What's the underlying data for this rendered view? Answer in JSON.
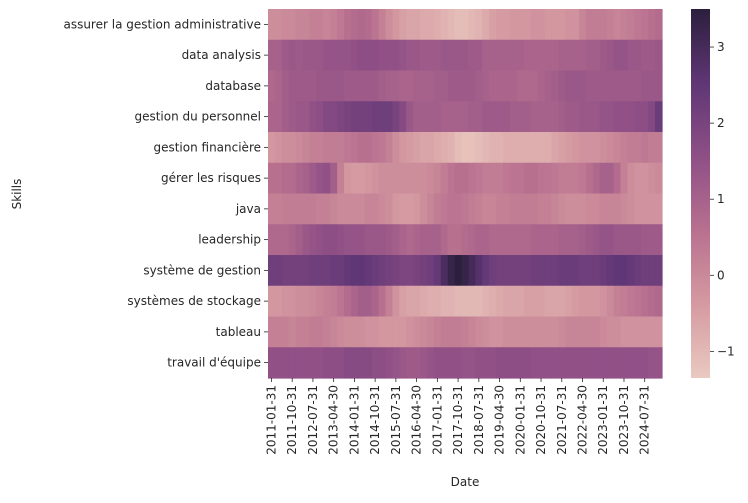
{
  "chart_data": {
    "type": "heatmap",
    "title": "",
    "xlabel": "Date",
    "ylabel": "Skills",
    "rows": [
      "assurer la gestion administrative",
      "data analysis",
      "database",
      "gestion du personnel",
      "gestion financière",
      "gérer les risques",
      "java",
      "leadership",
      "système de gestion",
      "systèmes de stockage",
      "tableau",
      "travail d'équipe"
    ],
    "x_tick_labels": [
      "2011-01-31",
      "2011-10-31",
      "2012-07-31",
      "2013-04-30",
      "2014-01-31",
      "2014-10-31",
      "2015-07-31",
      "2016-04-30",
      "2017-01-31",
      "2017-10-31",
      "2018-07-31",
      "2019-04-30",
      "2020-01-31",
      "2020-10-31",
      "2021-07-31",
      "2022-04-30",
      "2023-01-31",
      "2023-10-31",
      "2024-07-31"
    ],
    "n_columns": 57,
    "colorbar": {
      "min": -1.35,
      "max": 3.5,
      "ticks": [
        -1,
        0,
        1,
        2,
        3
      ]
    },
    "colormap_stops": [
      "#e9c9c0",
      "#d59aa1",
      "#b8708f",
      "#8e4f86",
      "#5f3675",
      "#2c1f3d"
    ],
    "values": [
      [
        -0.1,
        -0.1,
        0.0,
        0.0,
        0.1,
        0.1,
        0.2,
        0.2,
        0.1,
        0.2,
        0.4,
        0.6,
        0.7,
        0.8,
        0.7,
        0.5,
        0.2,
        -0.1,
        -0.3,
        -0.5,
        -0.6,
        -0.6,
        -0.7,
        -0.7,
        -0.8,
        -0.9,
        -1.0,
        -1.1,
        -1.1,
        -1.0,
        -0.9,
        -0.7,
        -0.5,
        -0.4,
        -0.4,
        -0.3,
        -0.3,
        -0.3,
        -0.2,
        -0.2,
        -0.3,
        -0.3,
        -0.3,
        -0.2,
        -0.2,
        0.1,
        0.3,
        0.3,
        0.3,
        0.2,
        0.1,
        0.2,
        0.3,
        0.4,
        0.5,
        0.6,
        0.7
      ],
      [
        1.0,
        1.0,
        1.2,
        1.3,
        1.2,
        1.3,
        1.3,
        1.3,
        1.4,
        1.4,
        1.4,
        1.4,
        1.5,
        1.6,
        1.6,
        1.6,
        1.5,
        1.5,
        1.5,
        1.4,
        1.3,
        1.3,
        1.2,
        1.2,
        1.2,
        1.3,
        1.3,
        1.3,
        1.3,
        1.2,
        1.2,
        1.0,
        1.0,
        1.0,
        1.0,
        1.0,
        1.0,
        0.9,
        0.9,
        0.9,
        0.9,
        0.9,
        1.0,
        1.0,
        1.0,
        1.0,
        1.1,
        1.1,
        1.2,
        1.3,
        1.4,
        1.4,
        1.3,
        1.3,
        1.2,
        1.2,
        1.3
      ],
      [
        0.8,
        0.9,
        1.1,
        1.2,
        1.2,
        1.2,
        1.2,
        1.3,
        1.3,
        1.3,
        1.3,
        1.2,
        1.2,
        1.2,
        1.2,
        1.2,
        1.1,
        1.0,
        1.0,
        0.9,
        0.9,
        1.0,
        1.0,
        1.0,
        1.1,
        1.1,
        1.2,
        1.2,
        1.2,
        1.2,
        1.1,
        1.0,
        0.9,
        0.9,
        0.9,
        0.9,
        0.8,
        0.8,
        0.8,
        0.9,
        1.0,
        1.1,
        1.2,
        1.3,
        1.3,
        1.3,
        1.2,
        1.2,
        1.2,
        1.2,
        1.2,
        1.2,
        1.2,
        1.2,
        1.3,
        1.3,
        1.3
      ],
      [
        0.9,
        0.9,
        1.1,
        1.2,
        1.3,
        1.3,
        1.5,
        1.6,
        1.8,
        1.8,
        1.9,
        2.0,
        2.1,
        2.1,
        2.1,
        2.2,
        2.2,
        2.2,
        2.0,
        1.7,
        1.3,
        1.1,
        1.1,
        1.1,
        1.1,
        1.0,
        1.0,
        1.0,
        1.0,
        1.1,
        1.1,
        1.2,
        1.2,
        1.2,
        1.2,
        1.1,
        1.1,
        1.1,
        1.0,
        1.0,
        1.0,
        1.0,
        1.1,
        1.2,
        1.2,
        1.3,
        1.3,
        1.3,
        1.4,
        1.4,
        1.5,
        1.5,
        1.5,
        1.6,
        1.6,
        1.8,
        2.3
      ],
      [
        -0.3,
        -0.2,
        -0.1,
        -0.1,
        0.0,
        0.1,
        0.2,
        0.2,
        0.3,
        0.3,
        0.3,
        0.4,
        0.5,
        0.6,
        0.6,
        0.5,
        0.4,
        0.2,
        -0.1,
        -0.3,
        -0.4,
        -0.5,
        -0.6,
        -0.6,
        -0.7,
        -0.8,
        -0.9,
        -1.1,
        -1.2,
        -1.2,
        -1.1,
        -1.0,
        -0.9,
        -0.9,
        -0.8,
        -0.8,
        -0.8,
        -0.8,
        -0.8,
        -0.8,
        -0.8,
        -0.6,
        -0.5,
        -0.4,
        -0.3,
        -0.2,
        -0.2,
        -0.2,
        -0.1,
        0.0,
        0.1,
        0.2,
        0.3,
        0.3,
        0.4,
        0.3,
        0.3
      ],
      [
        0.6,
        0.6,
        0.7,
        0.7,
        0.9,
        1.0,
        1.2,
        1.4,
        1.5,
        1.1,
        0.2,
        -0.3,
        -0.4,
        -0.4,
        -0.3,
        -0.2,
        -0.1,
        -0.1,
        -0.1,
        -0.1,
        -0.1,
        -0.1,
        -0.1,
        0.0,
        0.1,
        0.3,
        0.5,
        0.6,
        0.6,
        0.5,
        0.4,
        0.3,
        0.3,
        0.3,
        0.4,
        0.5,
        0.5,
        0.6,
        0.6,
        0.5,
        0.5,
        0.4,
        0.3,
        0.3,
        0.3,
        0.4,
        0.6,
        0.8,
        1.0,
        1.0,
        0.7,
        0.2,
        -0.1,
        -0.2,
        -0.2,
        -0.1,
        0.0
      ],
      [
        0.2,
        0.2,
        0.3,
        0.3,
        0.3,
        0.3,
        0.3,
        0.2,
        0.2,
        0.1,
        0.0,
        0.0,
        0.0,
        0.0,
        0.1,
        0.1,
        0.0,
        -0.1,
        -0.3,
        -0.4,
        -0.4,
        -0.3,
        -0.1,
        0.1,
        0.3,
        0.4,
        0.5,
        0.5,
        0.4,
        0.3,
        0.2,
        0.1,
        0.1,
        0.2,
        0.2,
        0.3,
        0.3,
        0.3,
        0.3,
        0.2,
        0.2,
        0.1,
        0.0,
        -0.1,
        -0.1,
        -0.1,
        0.0,
        0.0,
        0.1,
        0.1,
        0.1,
        0.0,
        -0.1,
        -0.2,
        -0.2,
        -0.2,
        -0.2
      ],
      [
        0.8,
        0.8,
        0.8,
        0.9,
        1.1,
        1.3,
        1.4,
        1.5,
        1.6,
        1.6,
        1.5,
        1.4,
        1.4,
        1.4,
        1.3,
        1.3,
        1.3,
        1.2,
        1.1,
        0.9,
        0.8,
        0.9,
        1.0,
        1.0,
        1.0,
        0.8,
        0.6,
        0.6,
        0.7,
        0.8,
        0.9,
        0.9,
        0.8,
        0.8,
        0.8,
        0.8,
        0.8,
        0.8,
        0.9,
        0.9,
        0.9,
        0.9,
        1.0,
        1.0,
        1.0,
        1.1,
        1.2,
        1.3,
        1.4,
        1.4,
        1.3,
        1.3,
        1.3,
        1.3,
        1.2,
        1.2,
        1.2
      ],
      [
        2.2,
        2.2,
        2.1,
        2.1,
        2.1,
        2.1,
        2.2,
        2.2,
        2.2,
        2.3,
        2.3,
        2.4,
        2.5,
        2.5,
        2.4,
        2.3,
        2.2,
        2.1,
        2.0,
        1.9,
        1.9,
        2.0,
        2.1,
        2.2,
        2.4,
        2.9,
        3.3,
        3.5,
        3.3,
        3.0,
        2.7,
        2.4,
        2.2,
        2.1,
        2.1,
        2.1,
        2.1,
        2.1,
        2.2,
        2.2,
        2.2,
        2.2,
        2.3,
        2.3,
        2.3,
        2.2,
        2.2,
        2.2,
        2.3,
        2.4,
        2.5,
        2.5,
        2.4,
        2.3,
        2.2,
        2.2,
        2.2
      ],
      [
        -0.3,
        -0.3,
        -0.2,
        -0.2,
        -0.1,
        -0.1,
        0.0,
        0.1,
        0.2,
        0.3,
        0.5,
        0.7,
        0.9,
        1.1,
        1.1,
        0.9,
        0.6,
        0.2,
        -0.2,
        -0.5,
        -0.6,
        -0.6,
        -0.7,
        -0.8,
        -0.8,
        -0.9,
        -0.9,
        -1.0,
        -1.0,
        -1.0,
        -1.0,
        -0.9,
        -0.8,
        -0.7,
        -0.6,
        -0.6,
        -0.6,
        -0.5,
        -0.5,
        -0.5,
        -0.6,
        -0.6,
        -0.6,
        -0.5,
        -0.4,
        -0.3,
        -0.3,
        -0.3,
        -0.2,
        0.0,
        0.2,
        0.3,
        0.4,
        0.5,
        0.6,
        0.7,
        0.8
      ],
      [
        0.2,
        0.2,
        0.2,
        0.1,
        0.2,
        0.2,
        0.3,
        0.3,
        0.2,
        0.1,
        0.0,
        -0.1,
        -0.1,
        -0.1,
        -0.2,
        -0.2,
        -0.3,
        -0.3,
        -0.3,
        -0.3,
        -0.2,
        -0.1,
        0.0,
        0.1,
        0.2,
        0.3,
        0.3,
        0.3,
        0.2,
        0.1,
        0.0,
        -0.1,
        -0.2,
        -0.2,
        -0.1,
        -0.1,
        -0.1,
        -0.1,
        -0.1,
        -0.1,
        -0.1,
        -0.1,
        0.0,
        0.1,
        0.1,
        0.1,
        0.1,
        0.1,
        0.0,
        -0.1,
        -0.1,
        -0.2,
        -0.2,
        -0.2,
        -0.2,
        -0.2,
        -0.2
      ],
      [
        1.5,
        1.5,
        1.5,
        1.5,
        1.5,
        1.5,
        1.5,
        1.5,
        1.6,
        1.6,
        1.6,
        1.7,
        1.7,
        1.7,
        1.7,
        1.6,
        1.6,
        1.5,
        1.4,
        1.3,
        1.2,
        1.2,
        1.3,
        1.4,
        1.5,
        1.5,
        1.5,
        1.5,
        1.4,
        1.4,
        1.5,
        1.5,
        1.5,
        1.6,
        1.6,
        1.6,
        1.6,
        1.6,
        1.5,
        1.5,
        1.5,
        1.5,
        1.5,
        1.5,
        1.5,
        1.5,
        1.5,
        1.5,
        1.5,
        1.5,
        1.5,
        1.5,
        1.5,
        1.5,
        1.5,
        1.4,
        1.4
      ]
    ]
  }
}
